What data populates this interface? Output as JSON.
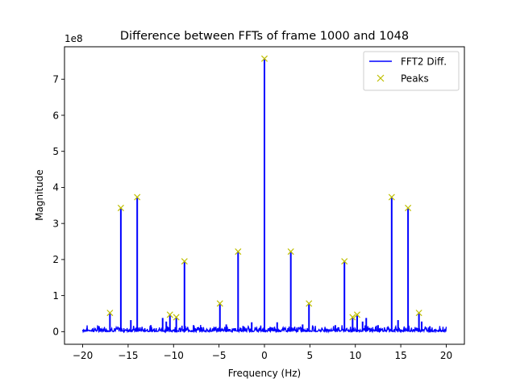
{
  "chart_data": {
    "type": "line",
    "title": "Difference between FFTs of frame 1000 and 1048",
    "xlabel": "Frequency (Hz)",
    "ylabel": "Magnitude",
    "y_offset_label": "1e8",
    "xlim": [
      -22,
      22
    ],
    "ylim": [
      -0.35,
      7.9
    ],
    "y_unit_multiplier": 100000000,
    "xticks": [
      -20,
      -15,
      -10,
      -5,
      0,
      5,
      10,
      15,
      20
    ],
    "xtick_labels": [
      "−20",
      "−15",
      "−10",
      "−5",
      "0",
      "5",
      "10",
      "15",
      "20"
    ],
    "yticks": [
      0,
      1,
      2,
      3,
      4,
      5,
      6,
      7
    ],
    "ytick_labels": [
      "0",
      "1",
      "2",
      "3",
      "4",
      "5",
      "6",
      "7"
    ],
    "grid": false,
    "legend_position": "upper right",
    "series": [
      {
        "name": "FFT2 Diff.",
        "style": "line",
        "color": "#0000ff",
        "x_range": [
          -20,
          20
        ],
        "spikes": [
          {
            "x": -17.0,
            "y": 0.52
          },
          {
            "x": -15.8,
            "y": 3.43
          },
          {
            "x": -14.0,
            "y": 3.73
          },
          {
            "x": -10.4,
            "y": 0.47
          },
          {
            "x": -9.7,
            "y": 0.4
          },
          {
            "x": -8.8,
            "y": 1.95
          },
          {
            "x": -4.9,
            "y": 0.78
          },
          {
            "x": -2.9,
            "y": 2.22
          },
          {
            "x": 0.0,
            "y": 7.57
          },
          {
            "x": 2.9,
            "y": 2.22
          },
          {
            "x": 4.9,
            "y": 0.78
          },
          {
            "x": 8.8,
            "y": 1.95
          },
          {
            "x": 9.7,
            "y": 0.4
          },
          {
            "x": 10.2,
            "y": 0.47
          },
          {
            "x": 14.0,
            "y": 3.73
          },
          {
            "x": 15.8,
            "y": 3.43
          },
          {
            "x": 17.0,
            "y": 0.52
          },
          {
            "x": -18.2,
            "y": 0.15
          },
          {
            "x": -14.7,
            "y": 0.32
          },
          {
            "x": -12.5,
            "y": 0.18
          },
          {
            "x": -11.2,
            "y": 0.38
          },
          {
            "x": -10.8,
            "y": 0.28
          },
          {
            "x": -7.8,
            "y": 0.18
          },
          {
            "x": -4.2,
            "y": 0.2
          },
          {
            "x": -1.4,
            "y": 0.26
          },
          {
            "x": 1.4,
            "y": 0.26
          },
          {
            "x": 4.2,
            "y": 0.2
          },
          {
            "x": 7.8,
            "y": 0.18
          },
          {
            "x": 10.8,
            "y": 0.28
          },
          {
            "x": 11.2,
            "y": 0.38
          },
          {
            "x": 12.5,
            "y": 0.18
          },
          {
            "x": 14.7,
            "y": 0.32
          },
          {
            "x": 17.3,
            "y": 0.28
          },
          {
            "x": 18.2,
            "y": 0.15
          }
        ],
        "noise_level": 0.12
      },
      {
        "name": "Peaks",
        "style": "marker-x",
        "color": "#bfbf00",
        "points": [
          {
            "x": -17.0,
            "y": 0.52
          },
          {
            "x": -15.8,
            "y": 3.43
          },
          {
            "x": -14.0,
            "y": 3.73
          },
          {
            "x": -10.4,
            "y": 0.47
          },
          {
            "x": -9.7,
            "y": 0.4
          },
          {
            "x": -8.8,
            "y": 1.95
          },
          {
            "x": -4.9,
            "y": 0.78
          },
          {
            "x": -2.9,
            "y": 2.22
          },
          {
            "x": 0.0,
            "y": 7.57
          },
          {
            "x": 2.9,
            "y": 2.22
          },
          {
            "x": 4.9,
            "y": 0.78
          },
          {
            "x": 8.8,
            "y": 1.95
          },
          {
            "x": 9.7,
            "y": 0.4
          },
          {
            "x": 10.2,
            "y": 0.47
          },
          {
            "x": 14.0,
            "y": 3.73
          },
          {
            "x": 15.8,
            "y": 3.43
          },
          {
            "x": 17.0,
            "y": 0.52
          }
        ]
      }
    ]
  }
}
